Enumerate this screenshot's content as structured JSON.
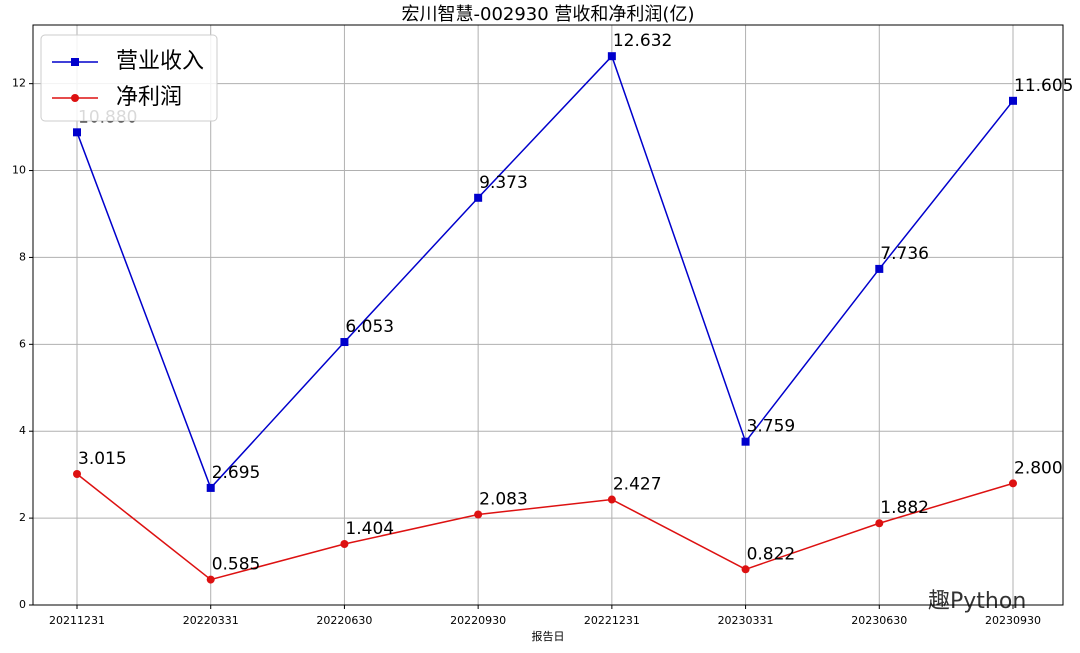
{
  "chart_data": {
    "type": "line",
    "title": "宏川智慧-002930 营收和净利润(亿)",
    "x_label": "报告日",
    "categories": [
      "20211231",
      "20220331",
      "20220630",
      "20220930",
      "20221231",
      "20230331",
      "20230630",
      "20230930"
    ],
    "series": [
      {
        "name": "营业收入",
        "color": "#0000cc",
        "marker": "square",
        "values": [
          10.88,
          2.695,
          6.053,
          9.373,
          12.632,
          3.759,
          7.736,
          11.605
        ],
        "value_labels": [
          "10.880",
          "2.695",
          "6.053",
          "9.373",
          "12.632",
          "3.759",
          "7.736",
          "11.605"
        ]
      },
      {
        "name": "净利润",
        "color": "#dd1111",
        "marker": "circle",
        "values": [
          3.015,
          0.585,
          1.404,
          2.083,
          2.427,
          0.822,
          1.882,
          2.8
        ],
        "value_labels": [
          "3.015",
          "0.585",
          "1.404",
          "2.083",
          "2.427",
          "0.822",
          "1.882",
          "2.800"
        ]
      }
    ],
    "ylim": [
      0,
      13.35
    ],
    "yticks": [
      0,
      2,
      4,
      6,
      8,
      10,
      12
    ],
    "grid": true,
    "legend": "upper left",
    "watermark": "趣Python"
  }
}
